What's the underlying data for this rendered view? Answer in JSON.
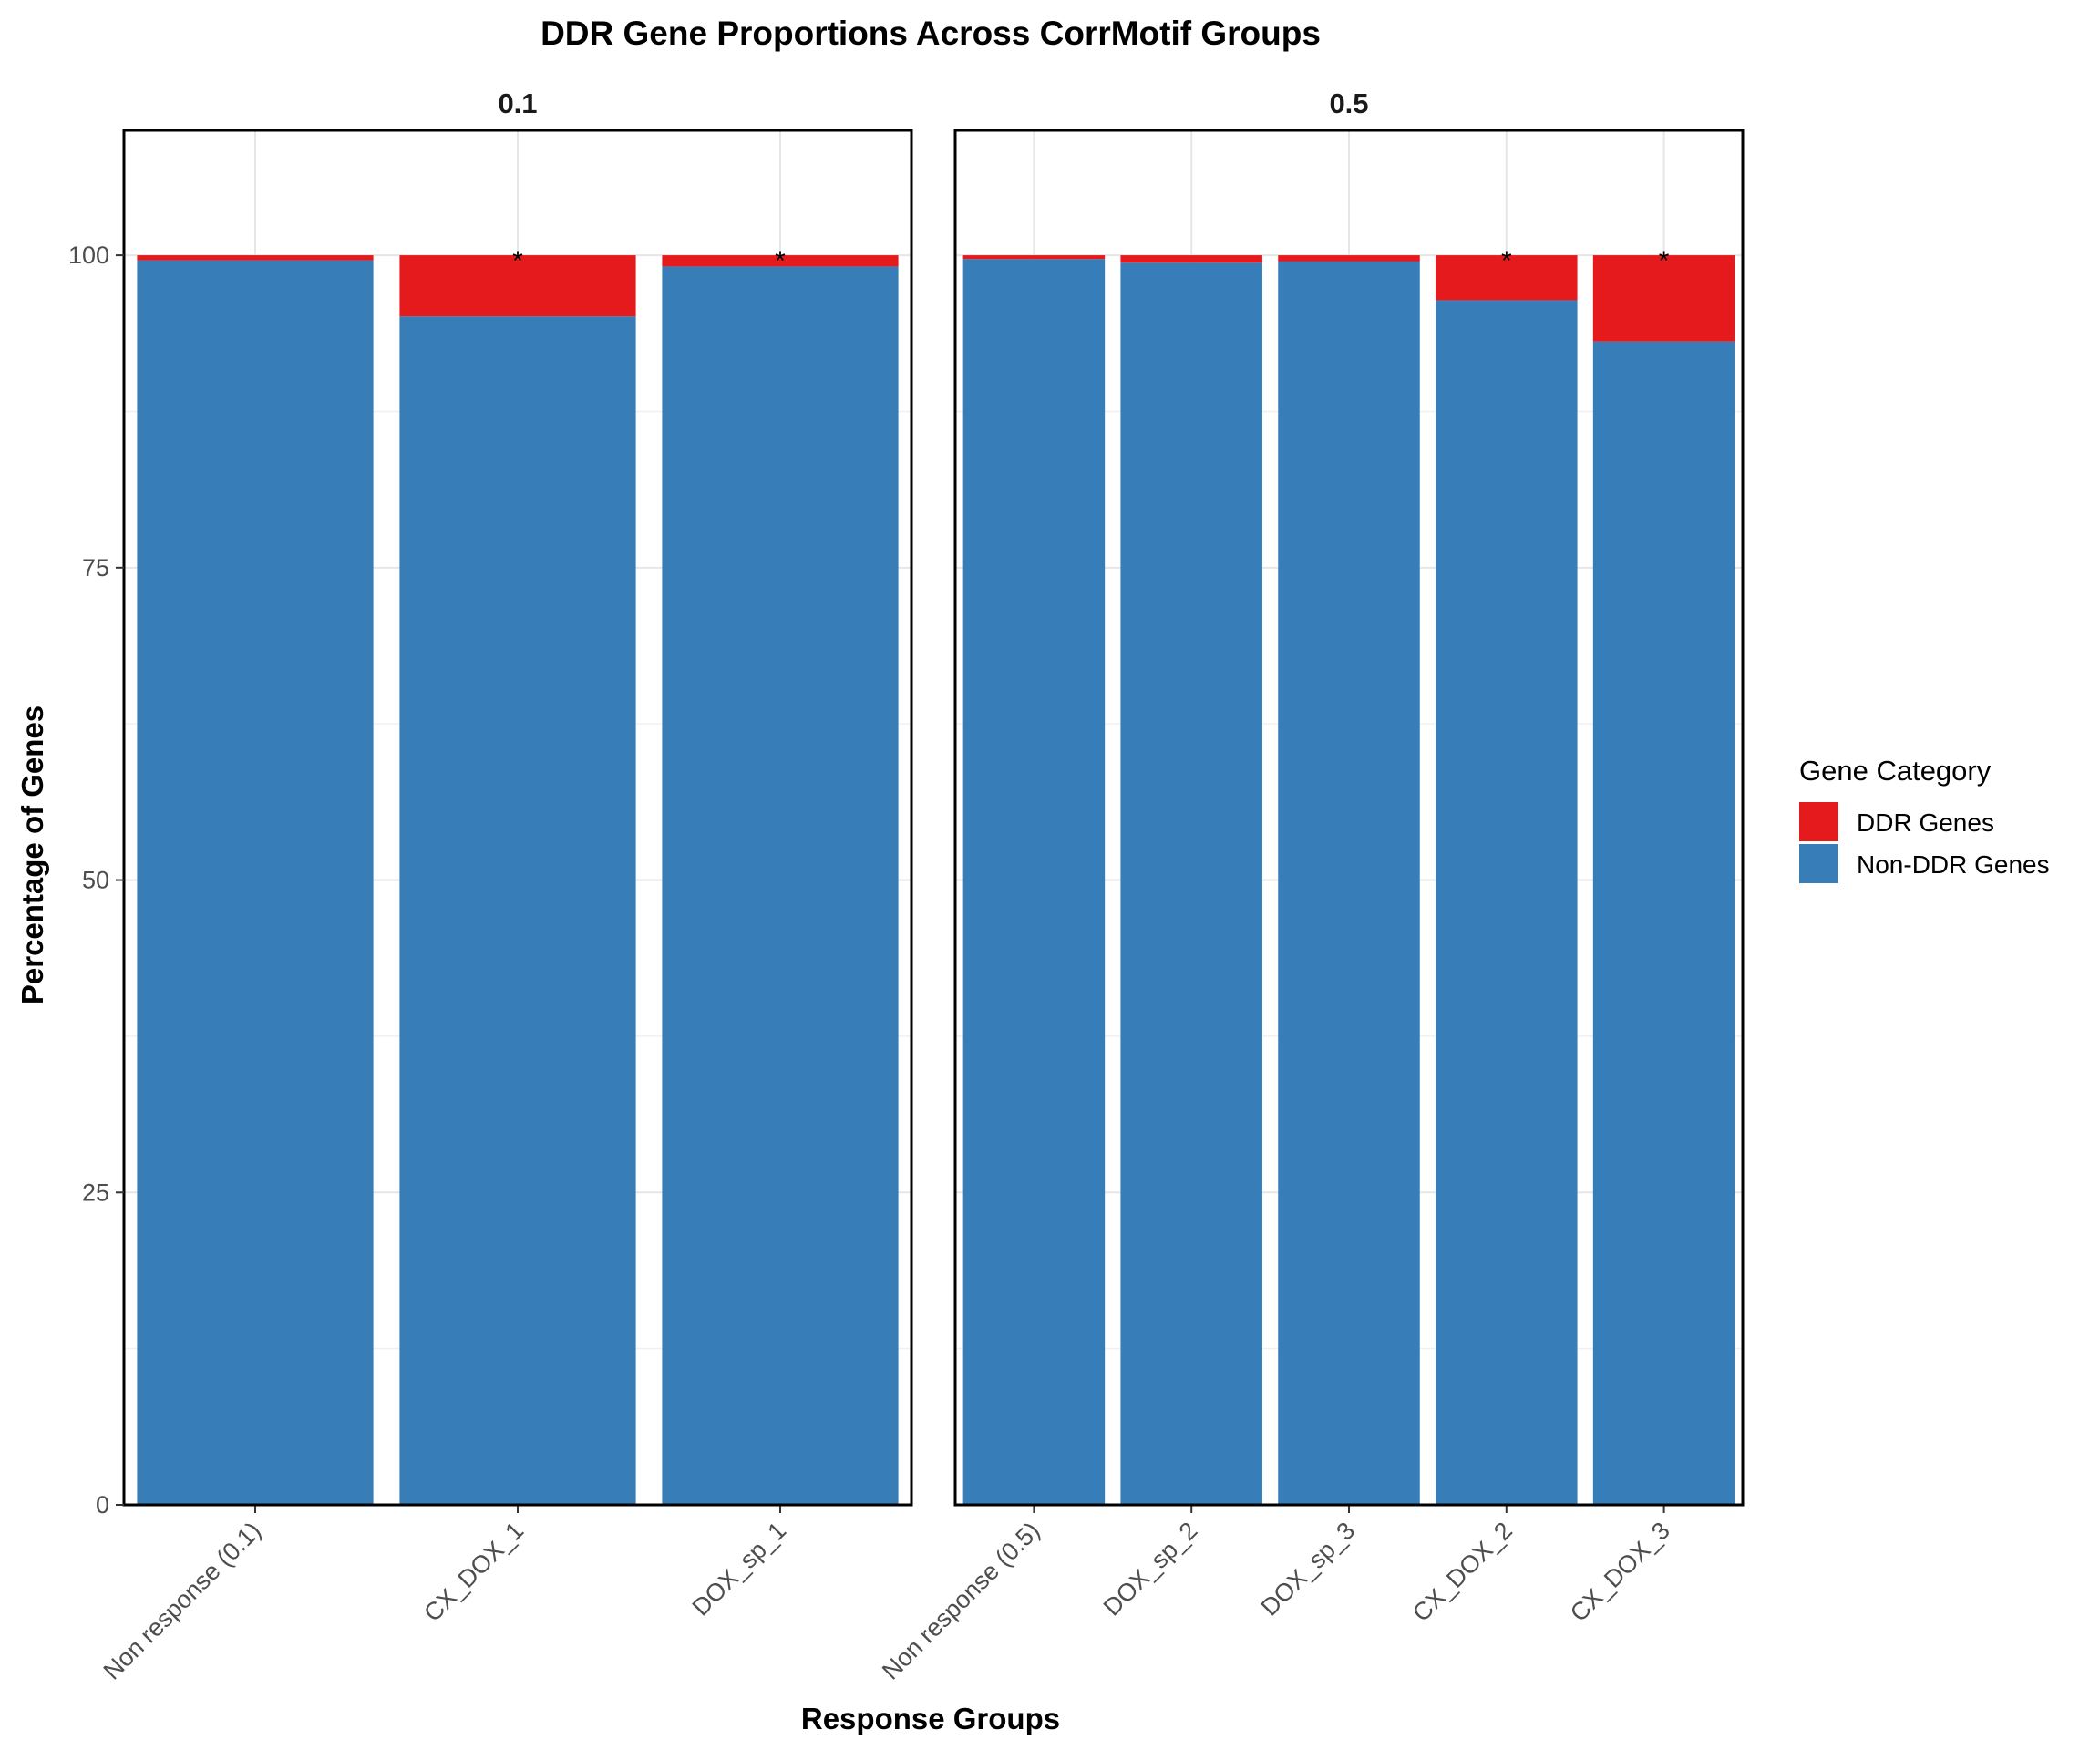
{
  "chart_data": {
    "type": "bar",
    "stacked": true,
    "title": "DDR Gene Proportions Across CorrMotif Groups",
    "xlabel": "Response Groups",
    "ylabel": "Percentage of Genes",
    "ylim": [
      0,
      110
    ],
    "yticks": [
      0,
      25,
      50,
      75,
      100
    ],
    "grid": true,
    "legend": {
      "title": "Gene Category",
      "position": "right",
      "entries": [
        {
          "name": "DDR Genes",
          "color": "#E41A1C"
        },
        {
          "name": "Non-DDR Genes",
          "color": "#377EB8"
        }
      ]
    },
    "significance_marker": "*",
    "panels": [
      {
        "label": "0.1",
        "categories": [
          "Non response (0.1)",
          "CX_DOX_1",
          "DOX_sp_1"
        ],
        "series": [
          {
            "name": "Non-DDR Genes",
            "values": [
              99.6,
              95.1,
              99.1
            ]
          },
          {
            "name": "DDR Genes",
            "values": [
              0.4,
              4.9,
              0.9
            ]
          }
        ],
        "significant": [
          false,
          true,
          true
        ]
      },
      {
        "label": "0.5",
        "categories": [
          "Non response (0.5)",
          "DOX_sp_2",
          "DOX_sp_3",
          "CX_DOX_2",
          "CX_DOX_3"
        ],
        "series": [
          {
            "name": "Non-DDR Genes",
            "values": [
              99.7,
              99.4,
              99.5,
              96.4,
              93.1
            ]
          },
          {
            "name": "DDR Genes",
            "values": [
              0.3,
              0.6,
              0.5,
              3.6,
              6.9
            ]
          }
        ],
        "significant": [
          false,
          false,
          false,
          true,
          true
        ]
      }
    ]
  }
}
